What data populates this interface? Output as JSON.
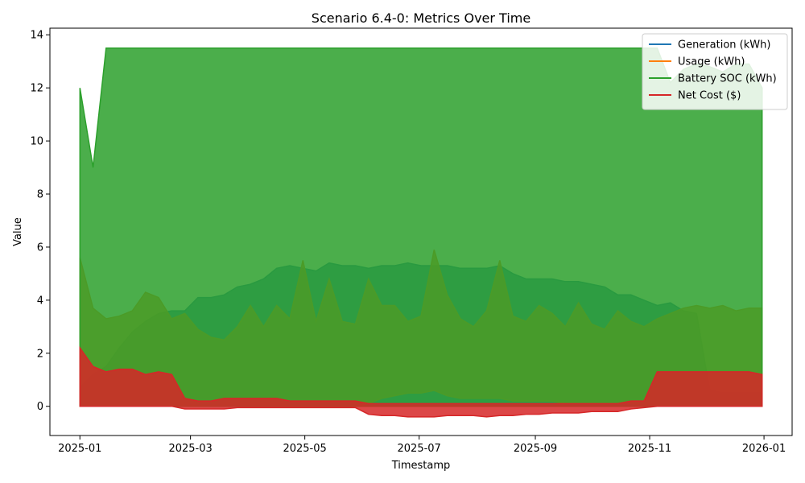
{
  "chart_data": {
    "type": "line",
    "title": "Scenario 6.4-0: Metrics Over Time",
    "xlabel": "Timestamp",
    "ylabel": "Value",
    "xlim": [
      "2024-12-16",
      "2026-01-16"
    ],
    "ylim": [
      -1.1,
      14.25
    ],
    "x_ticks": [
      "2025-01",
      "2025-03",
      "2025-05",
      "2025-07",
      "2025-09",
      "2025-11",
      "2026-01"
    ],
    "y_ticks": [
      0,
      2,
      4,
      6,
      8,
      10,
      12,
      14
    ],
    "grid": false,
    "legend_position": "top-right",
    "series": [
      {
        "name": "Generation (kWh)",
        "color": "#1f77b4",
        "sampling": "weekly",
        "x_start": "2025-01-01",
        "low": [
          0,
          0,
          0,
          0,
          0,
          0,
          0,
          0,
          0,
          0,
          0,
          0,
          0,
          0,
          0,
          0,
          0,
          0,
          0,
          0,
          0,
          0,
          0,
          0,
          0,
          0,
          0,
          0,
          0,
          0,
          0,
          0,
          0,
          0,
          0,
          0,
          0,
          0,
          0,
          0,
          0,
          0,
          0,
          0,
          0,
          0,
          0,
          0,
          0,
          0,
          0,
          0,
          0
        ],
        "high": [
          0.7,
          1.2,
          1.5,
          2.2,
          2.8,
          3.2,
          3.5,
          3.6,
          3.6,
          4.1,
          4.1,
          4.2,
          4.5,
          4.6,
          4.8,
          5.2,
          5.3,
          5.2,
          5.1,
          5.4,
          5.3,
          5.3,
          5.2,
          5.3,
          5.3,
          5.4,
          5.3,
          5.3,
          5.3,
          5.2,
          5.2,
          5.2,
          5.3,
          5.0,
          4.8,
          4.8,
          4.8,
          4.7,
          4.7,
          4.6,
          4.5,
          4.2,
          4.2,
          4.0,
          3.8,
          3.9,
          3.6,
          3.5,
          0.6,
          0.5,
          0.5,
          0.5,
          0.5
        ]
      },
      {
        "name": "Usage (kWh)",
        "color": "#ff7f0e",
        "sampling": "weekly",
        "x_start": "2025-01-01",
        "low": [
          0,
          0,
          0,
          0,
          0,
          0,
          0,
          0,
          0,
          0,
          0,
          0,
          0,
          0,
          0,
          0,
          0,
          0,
          0,
          0,
          0,
          0,
          0.1,
          0.3,
          0.4,
          0.5,
          0.5,
          0.6,
          0.4,
          0.3,
          0.3,
          0.3,
          0.3,
          0.2,
          0.2,
          0.2,
          0.2,
          0.1,
          0.1,
          0.1,
          0.1,
          0.1,
          0.1,
          0,
          0,
          0,
          0,
          0,
          0,
          0,
          0,
          0,
          0
        ],
        "high": [
          5.6,
          3.7,
          3.3,
          3.4,
          3.6,
          4.3,
          4.1,
          3.3,
          3.5,
          2.9,
          2.6,
          2.5,
          3.0,
          3.8,
          3.0,
          3.8,
          3.3,
          5.5,
          3.2,
          4.8,
          3.2,
          3.1,
          4.8,
          3.8,
          3.8,
          3.2,
          3.4,
          5.9,
          4.2,
          3.3,
          3.0,
          3.6,
          5.5,
          3.4,
          3.2,
          3.8,
          3.5,
          3.0,
          3.9,
          3.1,
          2.9,
          3.6,
          3.2,
          3.0,
          3.3,
          3.5,
          3.7,
          3.8,
          3.7,
          3.8,
          3.6,
          3.7,
          3.7
        ]
      },
      {
        "name": "Battery SOC (kWh)",
        "color": "#2ca02c",
        "sampling": "weekly",
        "x_start": "2025-01-01",
        "low": [
          0,
          0,
          0,
          0,
          0,
          0,
          0,
          0,
          0,
          0,
          0,
          0,
          0,
          0,
          0,
          0,
          0,
          0,
          0,
          0,
          0,
          0,
          0,
          0,
          0,
          0,
          0,
          0,
          0,
          0,
          0,
          0,
          0,
          0,
          0,
          0,
          0,
          0,
          0,
          0,
          0,
          0,
          0,
          0,
          0,
          0,
          0,
          0,
          0,
          0,
          0,
          0,
          0
        ],
        "high": [
          12.0,
          9.0,
          13.5,
          13.5,
          13.5,
          13.5,
          13.5,
          13.5,
          13.5,
          13.5,
          13.5,
          13.5,
          13.5,
          13.5,
          13.5,
          13.5,
          13.5,
          13.5,
          13.5,
          13.5,
          13.5,
          13.5,
          13.5,
          13.5,
          13.5,
          13.5,
          13.5,
          13.5,
          13.5,
          13.5,
          13.5,
          13.5,
          13.5,
          13.5,
          13.5,
          13.5,
          13.5,
          13.5,
          13.5,
          13.5,
          13.5,
          13.5,
          13.5,
          13.5,
          13.5,
          12.2,
          12.7,
          12.9,
          12.8,
          12.6,
          12.9,
          12.9,
          12.0
        ]
      },
      {
        "name": "Net Cost ($)",
        "color": "#d62728",
        "sampling": "weekly",
        "x_start": "2025-01-01",
        "low": [
          0,
          0,
          0,
          0,
          0,
          0,
          0,
          0,
          -0.1,
          -0.1,
          -0.1,
          -0.1,
          -0.05,
          -0.05,
          -0.05,
          -0.05,
          -0.05,
          -0.05,
          -0.05,
          -0.05,
          -0.05,
          -0.05,
          -0.3,
          -0.35,
          -0.35,
          -0.4,
          -0.4,
          -0.4,
          -0.35,
          -0.35,
          -0.35,
          -0.4,
          -0.35,
          -0.35,
          -0.3,
          -0.3,
          -0.25,
          -0.25,
          -0.25,
          -0.2,
          -0.2,
          -0.2,
          -0.1,
          -0.05,
          0,
          0,
          0,
          0,
          0,
          0,
          0,
          0,
          0
        ],
        "high": [
          2.2,
          1.5,
          1.3,
          1.4,
          1.4,
          1.2,
          1.3,
          1.2,
          0.3,
          0.2,
          0.2,
          0.3,
          0.3,
          0.3,
          0.3,
          0.3,
          0.2,
          0.2,
          0.2,
          0.2,
          0.2,
          0.2,
          0.1,
          0.1,
          0.1,
          0.1,
          0.1,
          0.1,
          0.1,
          0.1,
          0.1,
          0.1,
          0.1,
          0.1,
          0.1,
          0.1,
          0.1,
          0.1,
          0.1,
          0.1,
          0.1,
          0.1,
          0.2,
          0.2,
          1.3,
          1.3,
          1.3,
          1.3,
          1.3,
          1.3,
          1.3,
          1.3,
          1.2
        ]
      }
    ]
  }
}
